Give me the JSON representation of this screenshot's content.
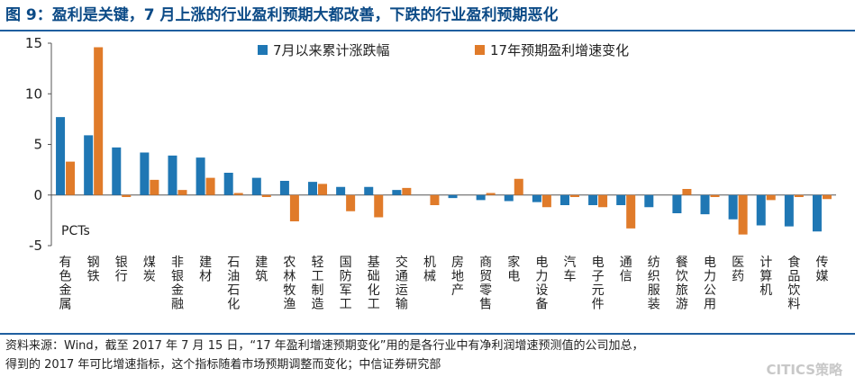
{
  "title": "图 9：盈利是关键，7 月上涨的行业盈利预期大都改善，下跌的行业盈利预期恶化",
  "source_line1": "资料来源：Wind，截至 2017 年 7 月 15 日，“17 年盈利增速预期变化”用的是各行业中有净利润增速预测值的公司加总，",
  "source_line2": "得到的 2017 年可比增速指标，这个指标随着市场预期调整而变化；中信证券研究部",
  "watermark": "CITICS策略",
  "colors": {
    "series1": "#1f77b4",
    "series2": "#e07b2a",
    "title": "#0b4a86",
    "rule": "#1f5fa0"
  },
  "chart_data": {
    "type": "bar",
    "title": "图 9：盈利是关键，7 月上涨的行业盈利预期大都改善，下跌的行业盈利预期恶化",
    "xlabel": "",
    "ylabel": "",
    "unit_label": "PCTs",
    "ylim": [
      -5,
      15
    ],
    "yticks": [
      -5,
      0,
      5,
      10,
      15
    ],
    "legend_position": "top",
    "categories": [
      "有色金属",
      "钢铁",
      "银行",
      "煤炭",
      "非银金融",
      "建材",
      "石油石化",
      "建筑",
      "农林牧渔",
      "轻工制造",
      "国防军工",
      "基础化工",
      "交通运输",
      "机械",
      "房地产",
      "商贸零售",
      "家电",
      "电力设备",
      "汽车",
      "电子元件",
      "通信",
      "纺织服装",
      "餐饮旅游",
      "电力公用",
      "医药",
      "计算机",
      "食品饮料",
      "传媒"
    ],
    "series": [
      {
        "name": "7月以来累计涨跌幅",
        "values": [
          7.7,
          5.9,
          4.7,
          4.2,
          3.9,
          3.7,
          2.2,
          1.7,
          1.4,
          1.3,
          0.8,
          0.8,
          0.5,
          0.0,
          -0.3,
          -0.5,
          -0.6,
          -0.7,
          -1.0,
          -1.0,
          -1.0,
          -1.2,
          -1.8,
          -1.9,
          -2.4,
          -3.0,
          -3.1,
          -3.6
        ]
      },
      {
        "name": "17年预期盈利增速变化",
        "values": [
          3.3,
          14.6,
          -0.2,
          1.5,
          0.5,
          1.7,
          0.2,
          -0.2,
          -2.6,
          1.1,
          -1.6,
          -2.2,
          0.7,
          -1.0,
          0.0,
          0.2,
          1.6,
          -1.2,
          -0.2,
          -1.2,
          -3.3,
          0.0,
          0.6,
          -0.2,
          -3.9,
          -0.5,
          -0.2,
          -0.4
        ]
      }
    ]
  }
}
